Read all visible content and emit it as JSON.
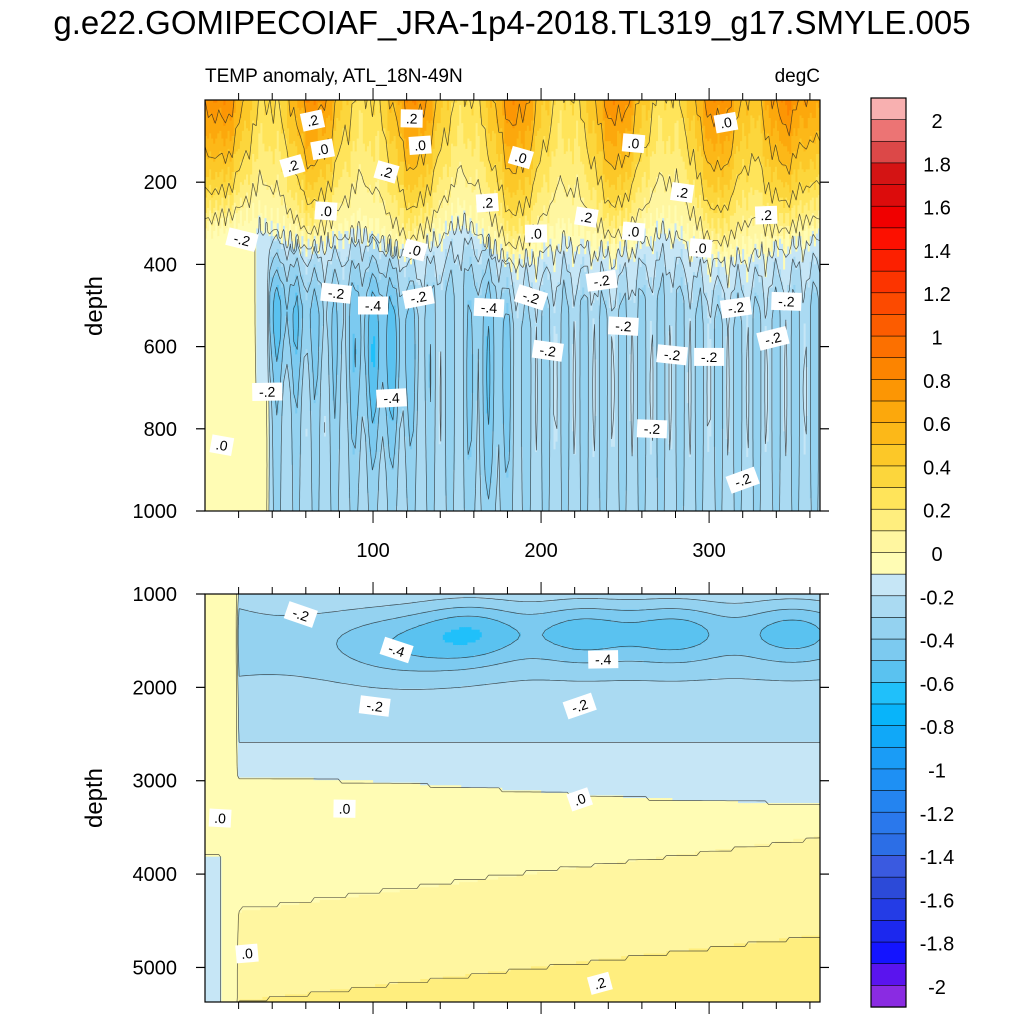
{
  "title": "g.e22.GOMIPECOIAF_JRA-1p4-2018.TL319_g17.SMYLE.005",
  "colors": {
    "levels": [
      {
        "min": -2.1,
        "max": -1.9,
        "color": "#8a2be2"
      },
      {
        "min": -1.9,
        "max": -1.8,
        "color": "#5a14ee"
      },
      {
        "min": -1.8,
        "max": -1.7,
        "color": "#1414ff"
      },
      {
        "min": -1.7,
        "max": -1.6,
        "color": "#1c28ee"
      },
      {
        "min": -1.6,
        "max": -1.5,
        "color": "#243ce6"
      },
      {
        "min": -1.5,
        "max": -1.4,
        "color": "#2c4ad8"
      },
      {
        "min": -1.4,
        "max": -1.3,
        "color": "#3a5ae0"
      },
      {
        "min": -1.3,
        "max": -1.2,
        "color": "#2c6ee6"
      },
      {
        "min": -1.2,
        "max": -1.1,
        "color": "#2a78ec"
      },
      {
        "min": -1.1,
        "max": -1.0,
        "color": "#2484f0"
      },
      {
        "min": -1.0,
        "max": -0.9,
        "color": "#1e90f4"
      },
      {
        "min": -0.9,
        "max": -0.8,
        "color": "#1a9cf6"
      },
      {
        "min": -0.8,
        "max": -0.7,
        "color": "#10a8f8"
      },
      {
        "min": -0.7,
        "max": -0.6,
        "color": "#08b4fa"
      },
      {
        "min": -0.6,
        "max": -0.5,
        "color": "#20c0fa"
      },
      {
        "min": -0.5,
        "max": -0.4,
        "color": "#5ac2f0"
      },
      {
        "min": -0.4,
        "max": -0.3,
        "color": "#7ccaf0"
      },
      {
        "min": -0.3,
        "max": -0.2,
        "color": "#94d2f0"
      },
      {
        "min": -0.2,
        "max": -0.1,
        "color": "#aadaf2"
      },
      {
        "min": -0.1,
        "max": 0.0,
        "color": "#c6e6f6"
      },
      {
        "min": 0.0,
        "max": 0.1,
        "color": "#fffcb4"
      },
      {
        "min": 0.1,
        "max": 0.2,
        "color": "#fff6a0"
      },
      {
        "min": 0.2,
        "max": 0.3,
        "color": "#ffee7e"
      },
      {
        "min": 0.3,
        "max": 0.4,
        "color": "#ffe45a"
      },
      {
        "min": 0.4,
        "max": 0.5,
        "color": "#fcd63c"
      },
      {
        "min": 0.5,
        "max": 0.6,
        "color": "#fcc828"
      },
      {
        "min": 0.6,
        "max": 0.7,
        "color": "#fcb818"
      },
      {
        "min": 0.7,
        "max": 0.8,
        "color": "#fca80c"
      },
      {
        "min": 0.8,
        "max": 0.9,
        "color": "#fc9604"
      },
      {
        "min": 0.9,
        "max": 1.0,
        "color": "#fc8400"
      },
      {
        "min": 1.0,
        "max": 1.1,
        "color": "#fc7000"
      },
      {
        "min": 1.1,
        "max": 1.2,
        "color": "#fc5c00"
      },
      {
        "min": 1.2,
        "max": 1.3,
        "color": "#fc4a00"
      },
      {
        "min": 1.3,
        "max": 1.4,
        "color": "#fc3400"
      },
      {
        "min": 1.4,
        "max": 1.5,
        "color": "#fc2000"
      },
      {
        "min": 1.5,
        "max": 1.6,
        "color": "#fc1000"
      },
      {
        "min": 1.6,
        "max": 1.7,
        "color": "#f00000"
      },
      {
        "min": 1.7,
        "max": 1.8,
        "color": "#dc0c0c"
      },
      {
        "min": 1.8,
        "max": 1.9,
        "color": "#d41414"
      },
      {
        "min": 1.9,
        "max": 2.0,
        "color": "#dc4848"
      },
      {
        "min": 2.0,
        "max": 2.1,
        "color": "#ec7474"
      },
      {
        "min": 2.1,
        "max": 2.2,
        "color": "#f8b0b0"
      }
    ]
  },
  "chart_data": [
    {
      "type": "heatmap",
      "title": "TEMP anomaly, ATL_18N-49N",
      "units": "degC",
      "ylabel": "depth",
      "xlabel": "",
      "xlim": [
        0,
        366
      ],
      "ylim": [
        1000,
        0
      ],
      "xticks": [
        100,
        200,
        300
      ],
      "yticks": [
        200,
        400,
        600,
        800,
        1000
      ],
      "field_description": "warm surface band (0.2–1.0) down to ~250–400 m with seasonal peaks near days 10, 125, 185, 245, 305; -0.2 to -0.4 below",
      "surface_peak_days": [
        10,
        65,
        125,
        185,
        245,
        305,
        345
      ],
      "warm_bottom_depth": [
        330,
        300,
        360,
        320,
        380,
        290,
        400,
        340,
        370,
        310,
        390,
        360
      ],
      "contour_labels": [
        {
          "x": 64,
          "y": 50,
          "text": ".2"
        },
        {
          "x": 123,
          "y": 45,
          "text": ".2"
        },
        {
          "x": 70,
          "y": 120,
          "text": ".0"
        },
        {
          "x": 128,
          "y": 110,
          "text": ".0"
        },
        {
          "x": 52,
          "y": 160,
          "text": ".2"
        },
        {
          "x": 108,
          "y": 175,
          "text": ".2"
        },
        {
          "x": 188,
          "y": 140,
          "text": ".0"
        },
        {
          "x": 255,
          "y": 105,
          "text": ".0"
        },
        {
          "x": 310,
          "y": 55,
          "text": ".0"
        },
        {
          "x": 168,
          "y": 250,
          "text": ".2"
        },
        {
          "x": 72,
          "y": 270,
          "text": ".0"
        },
        {
          "x": 227,
          "y": 285,
          "text": ".2"
        },
        {
          "x": 284,
          "y": 225,
          "text": ".2"
        },
        {
          "x": 334,
          "y": 280,
          "text": ".2"
        },
        {
          "x": 22,
          "y": 340,
          "text": "-.2"
        },
        {
          "x": 125,
          "y": 365,
          "text": ".0"
        },
        {
          "x": 197,
          "y": 325,
          "text": ".0"
        },
        {
          "x": 255,
          "y": 320,
          "text": ".0"
        },
        {
          "x": 295,
          "y": 360,
          "text": ".0"
        },
        {
          "x": 78,
          "y": 470,
          "text": "-.2"
        },
        {
          "x": 100,
          "y": 500,
          "text": "-.4"
        },
        {
          "x": 127,
          "y": 480,
          "text": "-.2"
        },
        {
          "x": 169,
          "y": 505,
          "text": "-.4"
        },
        {
          "x": 194,
          "y": 480,
          "text": "-.2"
        },
        {
          "x": 236,
          "y": 440,
          "text": "-.2"
        },
        {
          "x": 249,
          "y": 550,
          "text": "-.2"
        },
        {
          "x": 316,
          "y": 505,
          "text": "-.2"
        },
        {
          "x": 346,
          "y": 490,
          "text": "-.2"
        },
        {
          "x": 204,
          "y": 610,
          "text": "-.2"
        },
        {
          "x": 278,
          "y": 620,
          "text": "-.2"
        },
        {
          "x": 300,
          "y": 625,
          "text": "-.2"
        },
        {
          "x": 338,
          "y": 580,
          "text": "-.2"
        },
        {
          "x": 37,
          "y": 710,
          "text": "-.2"
        },
        {
          "x": 111,
          "y": 725,
          "text": "-.4"
        },
        {
          "x": 266,
          "y": 800,
          "text": "-.2"
        },
        {
          "x": 10,
          "y": 840,
          "text": ".0"
        },
        {
          "x": 320,
          "y": 925,
          "text": "-.2"
        }
      ]
    },
    {
      "type": "heatmap",
      "title": "",
      "units": "degC",
      "ylabel": "depth",
      "xlabel": "",
      "xlim": [
        0,
        366
      ],
      "ylim": [
        5370,
        1000
      ],
      "xticks": [
        100,
        200,
        300
      ],
      "yticks": [
        1000,
        2000,
        3000,
        4000,
        5000
      ],
      "field_description": "-0.2 to -0.5 core between 1000–2000 m, -0.1 band to ~3000 m, 0 to 0.1 below, 0.2 near bottom on the right",
      "cold_core_days": [
        160,
        225,
        280,
        350
      ],
      "contour_labels": [
        {
          "x": 57,
          "y": 1220,
          "text": "-.2"
        },
        {
          "x": 114,
          "y": 1600,
          "text": "-.4"
        },
        {
          "x": 237,
          "y": 1700,
          "text": "-.4"
        },
        {
          "x": 101,
          "y": 2200,
          "text": "-.2"
        },
        {
          "x": 223,
          "y": 2200,
          "text": "-.2"
        },
        {
          "x": 83,
          "y": 3300,
          "text": ".0"
        },
        {
          "x": 223,
          "y": 3200,
          "text": ".0"
        },
        {
          "x": 9,
          "y": 3400,
          "text": ".0"
        },
        {
          "x": 25,
          "y": 4850,
          "text": ".0"
        },
        {
          "x": 235,
          "y": 5170,
          "text": ".2"
        }
      ]
    }
  ],
  "colorbar": {
    "labels": [
      "2",
      "1.8",
      "1.6",
      "1.4",
      "1.2",
      "1",
      "0.8",
      "0.6",
      "0.4",
      "0.2",
      "0",
      "-0.2",
      "-0.4",
      "-0.6",
      "-0.8",
      "-1",
      "-1.2",
      "-1.4",
      "-1.6",
      "-1.8",
      "-2"
    ]
  }
}
